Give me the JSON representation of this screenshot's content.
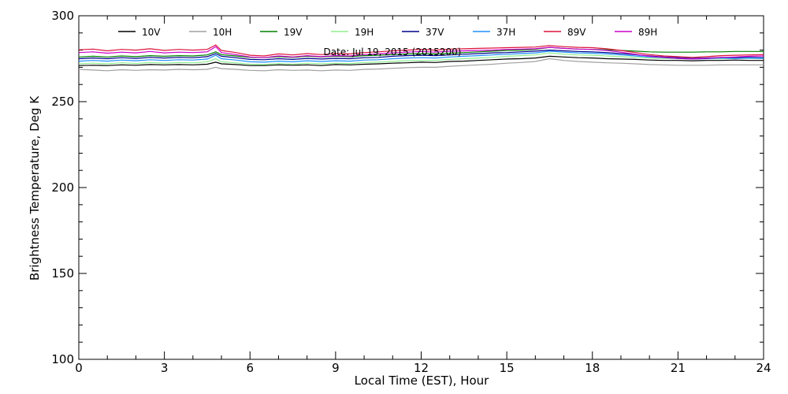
{
  "chart_data": {
    "type": "line",
    "title": "Date: Jul 19, 2015 (2015200)",
    "xlabel": "Local Time (EST), Hour",
    "ylabel": "Brightness Temperature, Deg K",
    "xlim": [
      0,
      24
    ],
    "ylim": [
      100,
      300
    ],
    "x_ticks": [
      0,
      3,
      6,
      9,
      12,
      15,
      18,
      21,
      24
    ],
    "y_ticks": [
      100,
      150,
      200,
      250,
      300
    ],
    "grid": false,
    "legend_position": "top",
    "x": [
      0,
      0.5,
      1,
      1.5,
      2,
      2.5,
      3,
      3.5,
      4,
      4.5,
      4.8,
      5,
      5.5,
      6,
      6.5,
      7,
      7.5,
      8,
      8.5,
      9,
      9.5,
      10,
      10.5,
      11,
      11.5,
      12,
      12.5,
      13,
      13.5,
      14,
      14.5,
      15,
      15.5,
      16,
      16.5,
      17,
      17.5,
      18,
      18.5,
      19,
      19.5,
      20,
      20.5,
      21,
      21.5,
      22,
      22.5,
      23,
      23.5,
      24
    ],
    "series": [
      {
        "name": "10V",
        "color": "#000000",
        "values": [
          271.0,
          271.2,
          271.0,
          271.4,
          271.2,
          271.6,
          271.4,
          271.6,
          271.4,
          271.8,
          273.0,
          272.0,
          271.6,
          271.0,
          271.0,
          271.4,
          271.2,
          271.4,
          271.0,
          271.6,
          271.4,
          271.8,
          272.0,
          272.4,
          272.6,
          273.0,
          272.8,
          273.4,
          273.6,
          274.0,
          274.4,
          274.8,
          275.0,
          275.4,
          276.4,
          276.0,
          275.6,
          275.4,
          275.0,
          274.8,
          274.6,
          274.2,
          274.0,
          274.0,
          273.8,
          274.0,
          274.0,
          274.2,
          274.0,
          274.0
        ]
      },
      {
        "name": "10H",
        "color": "#a0a0a0",
        "values": [
          268.8,
          268.4,
          268.0,
          268.6,
          268.2,
          268.6,
          268.4,
          268.8,
          268.6,
          268.8,
          270.0,
          269.2,
          268.8,
          268.2,
          268.0,
          268.6,
          268.2,
          268.4,
          268.0,
          268.4,
          268.2,
          268.8,
          269.0,
          269.4,
          269.8,
          270.0,
          270.0,
          270.6,
          271.0,
          271.4,
          271.8,
          272.4,
          272.8,
          273.4,
          275.0,
          274.0,
          273.4,
          273.0,
          272.6,
          272.4,
          272.0,
          271.6,
          271.4,
          271.2,
          271.2,
          271.2,
          271.4,
          271.4,
          271.4,
          271.4
        ]
      },
      {
        "name": "19V",
        "color": "#008000",
        "values": [
          276.0,
          276.4,
          276.0,
          276.6,
          276.2,
          276.8,
          276.4,
          276.8,
          276.6,
          277.2,
          279.0,
          277.4,
          276.6,
          275.8,
          275.6,
          276.2,
          275.8,
          276.4,
          276.0,
          276.4,
          276.2,
          276.8,
          277.0,
          277.4,
          277.8,
          278.0,
          277.8,
          278.2,
          278.6,
          279.0,
          279.4,
          279.8,
          280.0,
          280.4,
          281.6,
          281.0,
          280.6,
          280.4,
          280.2,
          279.8,
          279.4,
          279.0,
          278.8,
          278.8,
          278.8,
          279.0,
          279.0,
          279.2,
          279.2,
          279.2
        ]
      },
      {
        "name": "19H",
        "color": "#90ee90",
        "values": [
          272.0,
          272.4,
          272.0,
          272.6,
          272.2,
          272.8,
          272.4,
          272.8,
          272.6,
          273.2,
          275.0,
          273.2,
          272.6,
          271.8,
          271.6,
          272.2,
          271.8,
          272.4,
          272.0,
          272.4,
          272.2,
          272.8,
          273.0,
          273.4,
          273.8,
          274.0,
          274.0,
          274.6,
          275.0,
          275.4,
          275.8,
          276.4,
          276.8,
          277.2,
          278.4,
          277.6,
          277.2,
          277.0,
          276.6,
          276.2,
          275.8,
          275.4,
          275.2,
          275.0,
          274.8,
          275.0,
          275.0,
          275.2,
          275.2,
          275.2
        ]
      },
      {
        "name": "37V",
        "color": "#00008b",
        "values": [
          275.0,
          275.4,
          275.0,
          275.6,
          275.2,
          275.8,
          275.4,
          275.8,
          275.6,
          276.2,
          278.0,
          276.4,
          275.6,
          274.6,
          274.4,
          275.0,
          274.6,
          275.2,
          274.8,
          275.2,
          275.0,
          275.6,
          275.8,
          276.4,
          276.8,
          277.0,
          276.8,
          277.2,
          277.6,
          278.0,
          278.4,
          278.6,
          279.0,
          279.4,
          280.0,
          279.6,
          279.2,
          279.0,
          278.6,
          278.0,
          277.4,
          276.6,
          276.0,
          275.6,
          275.2,
          275.4,
          275.8,
          275.6,
          275.8,
          275.6
        ]
      },
      {
        "name": "37H",
        "color": "#1e90ff",
        "values": [
          273.6,
          274.0,
          273.6,
          274.2,
          273.8,
          274.4,
          274.0,
          274.4,
          274.2,
          274.8,
          277.0,
          275.0,
          274.2,
          273.2,
          273.0,
          273.6,
          273.2,
          273.8,
          273.4,
          273.8,
          273.6,
          274.2,
          274.4,
          275.0,
          275.4,
          275.6,
          275.4,
          276.0,
          276.4,
          276.8,
          277.2,
          277.6,
          278.0,
          278.4,
          279.4,
          278.8,
          278.4,
          278.2,
          277.8,
          277.2,
          276.6,
          276.0,
          275.6,
          275.2,
          274.8,
          275.0,
          275.4,
          275.2,
          275.4,
          275.2
        ]
      },
      {
        "name": "89V",
        "color": "#dc143c",
        "values": [
          280.2,
          280.6,
          279.6,
          280.4,
          280.0,
          280.8,
          279.8,
          280.4,
          280.0,
          280.4,
          283.0,
          279.8,
          278.6,
          277.0,
          276.6,
          277.8,
          277.2,
          278.0,
          277.4,
          278.0,
          277.8,
          278.6,
          279.0,
          279.6,
          280.0,
          280.4,
          280.0,
          280.6,
          280.8,
          281.0,
          281.2,
          281.4,
          281.6,
          281.8,
          282.6,
          282.0,
          281.6,
          281.4,
          280.8,
          279.8,
          278.6,
          277.4,
          276.6,
          276.2,
          275.8,
          276.2,
          276.8,
          277.0,
          277.2,
          277.4
        ]
      },
      {
        "name": "89H",
        "color": "#cc00cc",
        "values": [
          278.6,
          279.0,
          278.2,
          278.8,
          278.4,
          279.2,
          278.4,
          278.8,
          278.6,
          279.0,
          282.0,
          278.6,
          277.4,
          276.0,
          275.6,
          276.6,
          276.0,
          276.8,
          276.2,
          276.8,
          276.6,
          277.4,
          277.8,
          278.4,
          278.8,
          279.2,
          278.8,
          279.4,
          279.6,
          279.8,
          280.0,
          280.4,
          280.6,
          280.8,
          281.6,
          281.0,
          280.6,
          280.4,
          279.8,
          278.8,
          277.6,
          276.4,
          275.8,
          275.2,
          274.8,
          275.2,
          275.8,
          276.0,
          276.4,
          276.6
        ]
      }
    ]
  }
}
